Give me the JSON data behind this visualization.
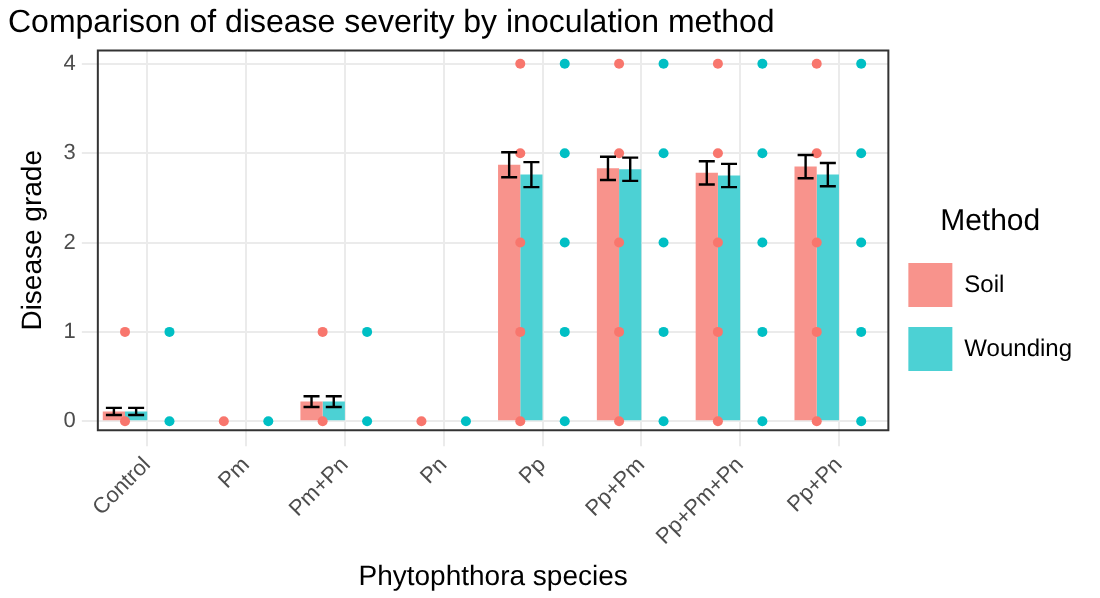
{
  "chart_data": {
    "type": "bar",
    "title": "Comparison of disease severity by inoculation method",
    "xlabel": "Phytophthora species",
    "ylabel": "Disease grade",
    "legend_title": "Method",
    "legend": "right",
    "grid": true,
    "categories": [
      "Control",
      "Pm",
      "Pm+Pn",
      "Pn",
      "Pp",
      "Pp+Pm",
      "Pp+Pm+Pn",
      "Pp+Pn"
    ],
    "ylim": [
      -0.1,
      4.15
    ],
    "yticks": [
      0,
      1,
      2,
      3,
      4
    ],
    "series": [
      {
        "name": "Soil",
        "color": "#f8938c",
        "values": [
          0.11,
          0,
          0.22,
          0,
          2.87,
          2.83,
          2.78,
          2.85
        ],
        "errors": [
          0.04,
          null,
          0.06,
          null,
          0.14,
          0.13,
          0.13,
          0.13
        ]
      },
      {
        "name": "Wounding",
        "color": "#4cd1d4",
        "values": [
          0.11,
          0,
          0.22,
          0,
          2.76,
          2.82,
          2.75,
          2.76
        ],
        "errors": [
          0.04,
          null,
          0.06,
          null,
          0.14,
          0.13,
          0.13,
          0.13
        ]
      },
      {
        "type": "scatter",
        "color": "#f8766d",
        "marker": "circle",
        "x": [
          "Control",
          "Control",
          "Pm",
          "Pm+Pn",
          "Pm+Pn",
          "Pn",
          "Pp",
          "Pp",
          "Pp",
          "Pp",
          "Pp",
          "Pp+Pm",
          "Pp+Pm",
          "Pp+Pm",
          "Pp+Pm",
          "Pp+Pm",
          "Pp+Pm+Pn",
          "Pp+Pm+Pn",
          "Pp+Pm+Pn",
          "Pp+Pm+Pn",
          "Pp+Pm+Pn",
          "Pp+Pn",
          "Pp+Pn",
          "Pp+Pn",
          "Pp+Pn",
          "Pp+Pn"
        ],
        "values": [
          0,
          1,
          0,
          0,
          1,
          0,
          0,
          1,
          2,
          3,
          4,
          0,
          1,
          2,
          3,
          4,
          0,
          1,
          2,
          3,
          4,
          0,
          1,
          2,
          3,
          4
        ]
      },
      {
        "type": "scatter",
        "color": "#00bfc4",
        "marker": "circle",
        "x": [
          "Control",
          "Control",
          "Pm",
          "Pm+Pn",
          "Pm+Pn",
          "Pn",
          "Pp",
          "Pp",
          "Pp",
          "Pp",
          "Pp",
          "Pp+Pm",
          "Pp+Pm",
          "Pp+Pm",
          "Pp+Pm",
          "Pp+Pm",
          "Pp+Pm+Pn",
          "Pp+Pm+Pn",
          "Pp+Pm+Pn",
          "Pp+Pm+Pn",
          "Pp+Pm+Pn",
          "Pp+Pn",
          "Pp+Pn",
          "Pp+Pn",
          "Pp+Pn",
          "Pp+Pn"
        ],
        "values": [
          0,
          1,
          0,
          0,
          1,
          0,
          0,
          1,
          2,
          3,
          4,
          0,
          1,
          2,
          3,
          4,
          0,
          1,
          2,
          3,
          4,
          0,
          1,
          2,
          3,
          4
        ]
      }
    ]
  }
}
